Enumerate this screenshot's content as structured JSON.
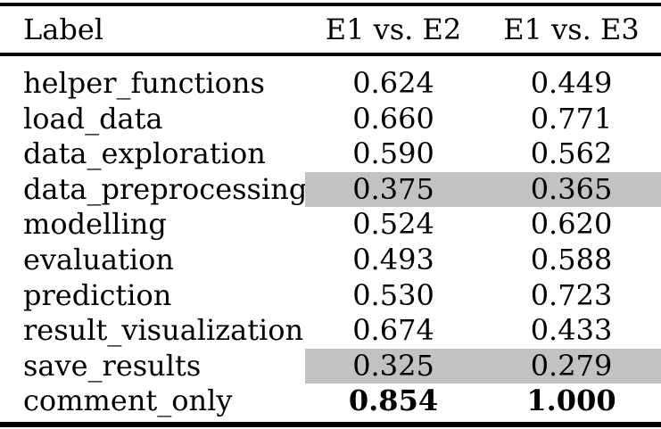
{
  "table": {
    "header": {
      "label": "Label",
      "col2": "E1 vs. E2",
      "col3": "E1 vs. E3"
    },
    "highlight_color": "#c2c2c2",
    "rows": [
      {
        "label": "helper_functions",
        "e1_vs_e2": "0.624",
        "e1_vs_e3": "0.449",
        "highlight": false,
        "bold": false
      },
      {
        "label": "load_data",
        "e1_vs_e2": "0.660",
        "e1_vs_e3": "0.771",
        "highlight": false,
        "bold": false
      },
      {
        "label": "data_exploration",
        "e1_vs_e2": "0.590",
        "e1_vs_e3": "0.562",
        "highlight": false,
        "bold": false
      },
      {
        "label": "data_preprocessing",
        "e1_vs_e2": "0.375",
        "e1_vs_e3": "0.365",
        "highlight": true,
        "bold": false
      },
      {
        "label": "modelling",
        "e1_vs_e2": "0.524",
        "e1_vs_e3": "0.620",
        "highlight": false,
        "bold": false
      },
      {
        "label": "evaluation",
        "e1_vs_e2": "0.493",
        "e1_vs_e3": "0.588",
        "highlight": false,
        "bold": false
      },
      {
        "label": "prediction",
        "e1_vs_e2": "0.530",
        "e1_vs_e3": "0.723",
        "highlight": false,
        "bold": false
      },
      {
        "label": "result_visualization",
        "e1_vs_e2": "0.674",
        "e1_vs_e3": "0.433",
        "highlight": false,
        "bold": false
      },
      {
        "label": "save_results",
        "e1_vs_e2": "0.325",
        "e1_vs_e3": "0.279",
        "highlight": true,
        "bold": false
      },
      {
        "label": "comment_only",
        "e1_vs_e2": "0.854",
        "e1_vs_e3": "1.000",
        "highlight": false,
        "bold": true
      }
    ]
  }
}
